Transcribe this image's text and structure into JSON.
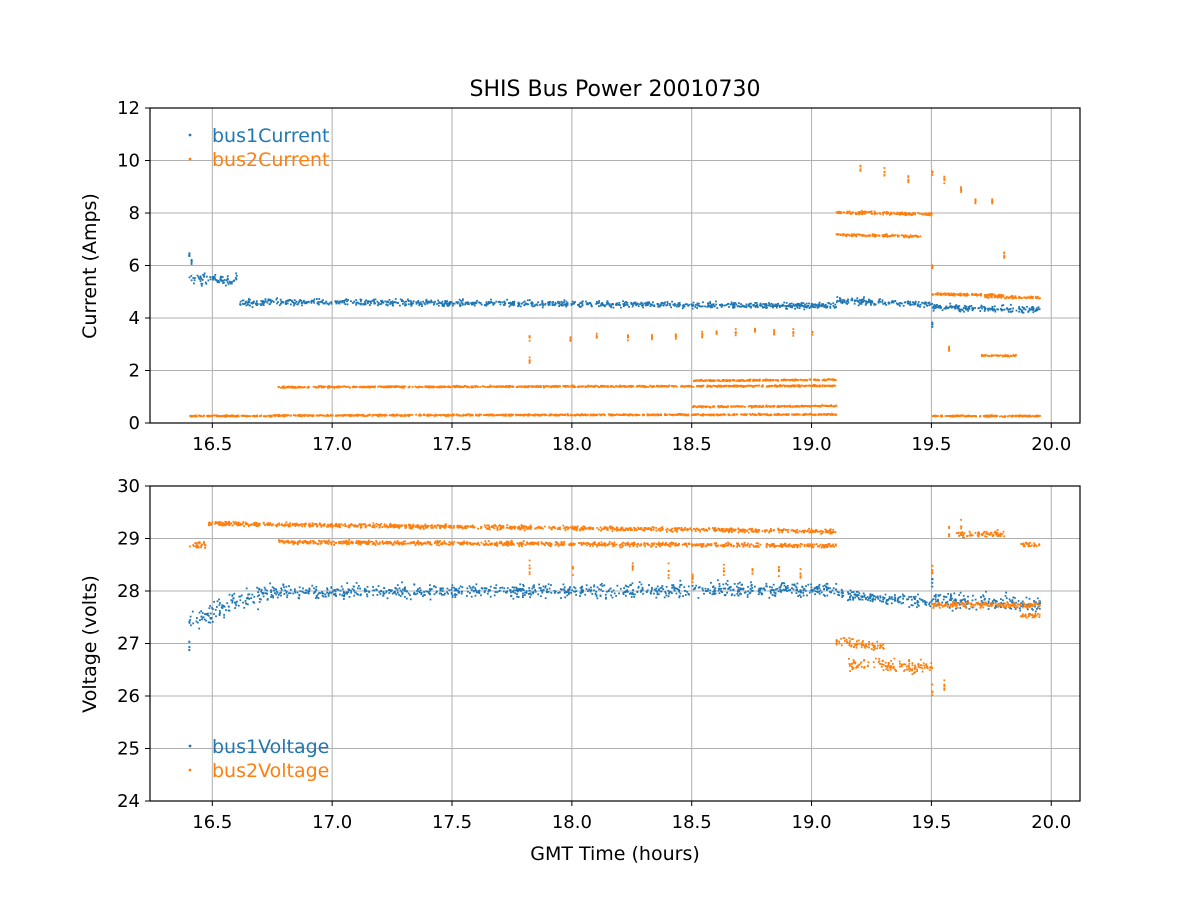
{
  "chart_data": [
    {
      "type": "scatter",
      "title": "SHIS Bus Power 20010730",
      "xlabel": "",
      "ylabel": "Current (Amps)",
      "xlim": [
        16.24,
        20.12
      ],
      "ylim": [
        0,
        12
      ],
      "xticks": [
        16.5,
        17.0,
        17.5,
        18.0,
        18.5,
        19.0,
        19.5,
        20.0
      ],
      "xtick_labels": [
        "16.5",
        "17.0",
        "17.5",
        "18.0",
        "18.5",
        "19.0",
        "19.5",
        "20.0"
      ],
      "yticks": [
        0,
        2,
        4,
        6,
        8,
        10,
        12
      ],
      "ytick_labels": [
        "0",
        "2",
        "4",
        "6",
        "8",
        "10",
        "12"
      ],
      "grid": true,
      "legend_position": "top-left",
      "series": [
        {
          "name": "bus1Current",
          "color": "#1f77b4",
          "segments": [
            {
              "x_start": 16.4,
              "x_end": 16.6,
              "y_start": 5.5,
              "y_end": 5.5,
              "spread": 0.35
            },
            {
              "x_start": 16.61,
              "x_end": 16.7,
              "y_start": 4.6,
              "y_end": 4.6,
              "spread": 0.25
            },
            {
              "x_start": 16.7,
              "x_end": 19.1,
              "y_start": 4.65,
              "y_end": 4.5,
              "spread": 0.2
            },
            {
              "x_start": 19.1,
              "x_end": 19.5,
              "y_start": 4.7,
              "y_end": 4.55,
              "spread": 0.2
            },
            {
              "x_start": 19.5,
              "x_end": 19.95,
              "y_start": 4.45,
              "y_end": 4.35,
              "spread": 0.2
            }
          ],
          "spikes": [
            {
              "x": 16.4,
              "y": 6.5
            },
            {
              "x": 16.41,
              "y": 6.2
            },
            {
              "x": 19.5,
              "y": 3.8
            }
          ]
        },
        {
          "name": "bus2Current",
          "color": "#ff7f0e",
          "segments": [
            {
              "x_start": 16.4,
              "x_end": 16.75,
              "y_start": 0.3,
              "y_end": 0.3,
              "spread": 0.05
            },
            {
              "x_start": 16.75,
              "x_end": 19.1,
              "y_start": 0.32,
              "y_end": 0.36,
              "spread": 0.05
            },
            {
              "x_start": 16.76,
              "x_end": 19.1,
              "y_start": 1.4,
              "y_end": 1.45,
              "spread": 0.05
            },
            {
              "x_start": 18.5,
              "x_end": 19.1,
              "y_start": 1.65,
              "y_end": 1.68,
              "spread": 0.05
            },
            {
              "x_start": 18.5,
              "x_end": 19.1,
              "y_start": 0.65,
              "y_end": 0.68,
              "spread": 0.05
            },
            {
              "x_start": 19.1,
              "x_end": 19.5,
              "y_start": 8.05,
              "y_end": 8.0,
              "spread": 0.1
            },
            {
              "x_start": 19.1,
              "x_end": 19.45,
              "y_start": 7.2,
              "y_end": 7.15,
              "spread": 0.08
            },
            {
              "x_start": 19.5,
              "x_end": 19.8,
              "y_start": 4.95,
              "y_end": 4.9,
              "spread": 0.08
            },
            {
              "x_start": 19.72,
              "x_end": 19.95,
              "y_start": 4.85,
              "y_end": 4.8,
              "spread": 0.08
            },
            {
              "x_start": 19.5,
              "x_end": 19.95,
              "y_start": 0.3,
              "y_end": 0.3,
              "spread": 0.05
            },
            {
              "x_start": 19.7,
              "x_end": 19.85,
              "y_start": 2.6,
              "y_end": 2.6,
              "spread": 0.05
            }
          ],
          "spikes": [
            {
              "x": 17.82,
              "y": 3.3
            },
            {
              "x": 17.82,
              "y": 2.4
            },
            {
              "x": 17.99,
              "y": 3.3
            },
            {
              "x": 18.1,
              "y": 3.3
            },
            {
              "x": 18.23,
              "y": 3.3
            },
            {
              "x": 18.33,
              "y": 3.3
            },
            {
              "x": 18.43,
              "y": 3.35
            },
            {
              "x": 18.54,
              "y": 3.4
            },
            {
              "x": 18.6,
              "y": 3.45
            },
            {
              "x": 18.68,
              "y": 3.5
            },
            {
              "x": 18.76,
              "y": 3.55
            },
            {
              "x": 18.84,
              "y": 3.55
            },
            {
              "x": 18.92,
              "y": 3.5
            },
            {
              "x": 19.0,
              "y": 3.5
            },
            {
              "x": 19.2,
              "y": 9.7
            },
            {
              "x": 19.3,
              "y": 9.6
            },
            {
              "x": 19.4,
              "y": 9.3
            },
            {
              "x": 19.5,
              "y": 9.6
            },
            {
              "x": 19.55,
              "y": 9.3
            },
            {
              "x": 19.62,
              "y": 8.9
            },
            {
              "x": 19.68,
              "y": 8.5
            },
            {
              "x": 19.75,
              "y": 8.5
            },
            {
              "x": 19.8,
              "y": 6.4
            },
            {
              "x": 19.5,
              "y": 6.0
            },
            {
              "x": 19.57,
              "y": 2.8
            }
          ]
        }
      ]
    },
    {
      "type": "scatter",
      "title": "",
      "xlabel": "GMT Time (hours)",
      "ylabel": "Voltage (volts)",
      "xlim": [
        16.24,
        20.12
      ],
      "ylim": [
        24,
        30
      ],
      "xticks": [
        16.5,
        17.0,
        17.5,
        18.0,
        18.5,
        19.0,
        19.5,
        20.0
      ],
      "xtick_labels": [
        "16.5",
        "17.0",
        "17.5",
        "18.0",
        "18.5",
        "19.0",
        "19.5",
        "20.0"
      ],
      "yticks": [
        24,
        25,
        26,
        27,
        28,
        29,
        30
      ],
      "ytick_labels": [
        "24",
        "25",
        "26",
        "27",
        "28",
        "29",
        "30"
      ],
      "grid": true,
      "legend_position": "bottom-left",
      "series": [
        {
          "name": "bus1Voltage",
          "color": "#1f77b4",
          "segments": [
            {
              "x_start": 16.4,
              "x_end": 16.5,
              "y_start": 27.45,
              "y_end": 27.6,
              "spread": 0.3
            },
            {
              "x_start": 16.5,
              "x_end": 16.7,
              "y_start": 27.65,
              "y_end": 27.95,
              "spread": 0.3
            },
            {
              "x_start": 16.7,
              "x_end": 19.1,
              "y_start": 28.0,
              "y_end": 28.05,
              "spread": 0.22
            },
            {
              "x_start": 19.1,
              "x_end": 19.5,
              "y_start": 27.95,
              "y_end": 27.8,
              "spread": 0.18
            },
            {
              "x_start": 19.5,
              "x_end": 19.95,
              "y_start": 27.85,
              "y_end": 27.75,
              "spread": 0.25
            }
          ],
          "spikes": [
            {
              "x": 16.4,
              "y": 26.95
            },
            {
              "x": 19.5,
              "y": 28.25
            }
          ]
        },
        {
          "name": "bus2Voltage",
          "color": "#ff7f0e",
          "segments": [
            {
              "x_start": 16.4,
              "x_end": 16.47,
              "y_start": 28.9,
              "y_end": 28.9,
              "spread": 0.1
            },
            {
              "x_start": 16.48,
              "x_end": 19.1,
              "y_start": 29.3,
              "y_end": 29.15,
              "spread": 0.07
            },
            {
              "x_start": 16.77,
              "x_end": 19.1,
              "y_start": 28.95,
              "y_end": 28.88,
              "spread": 0.07
            },
            {
              "x_start": 19.1,
              "x_end": 19.3,
              "y_start": 27.05,
              "y_end": 26.95,
              "spread": 0.15
            },
            {
              "x_start": 19.15,
              "x_end": 19.5,
              "y_start": 26.65,
              "y_end": 26.55,
              "spread": 0.2
            },
            {
              "x_start": 19.5,
              "x_end": 19.95,
              "y_start": 27.75,
              "y_end": 27.75,
              "spread": 0.1
            },
            {
              "x_start": 19.6,
              "x_end": 19.8,
              "y_start": 29.1,
              "y_end": 29.1,
              "spread": 0.1
            },
            {
              "x_start": 19.87,
              "x_end": 19.95,
              "y_start": 28.9,
              "y_end": 28.9,
              "spread": 0.07
            },
            {
              "x_start": 19.87,
              "x_end": 19.95,
              "y_start": 27.55,
              "y_end": 27.55,
              "spread": 0.07
            }
          ],
          "spikes": [
            {
              "x": 17.82,
              "y": 28.45
            },
            {
              "x": 18.0,
              "y": 28.45
            },
            {
              "x": 18.25,
              "y": 28.5
            },
            {
              "x": 18.4,
              "y": 28.4
            },
            {
              "x": 18.5,
              "y": 28.3
            },
            {
              "x": 18.63,
              "y": 28.4
            },
            {
              "x": 18.75,
              "y": 28.35
            },
            {
              "x": 18.86,
              "y": 28.4
            },
            {
              "x": 18.95,
              "y": 28.3
            },
            {
              "x": 19.5,
              "y": 26.1
            },
            {
              "x": 19.55,
              "y": 26.2
            },
            {
              "x": 19.5,
              "y": 28.5
            },
            {
              "x": 19.57,
              "y": 29.1
            },
            {
              "x": 19.62,
              "y": 29.25
            }
          ]
        }
      ]
    }
  ]
}
